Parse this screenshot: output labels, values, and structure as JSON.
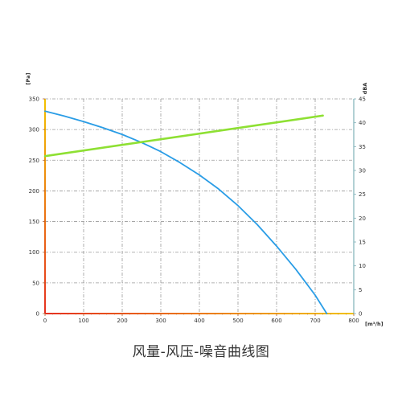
{
  "chart_data": {
    "type": "line",
    "caption": "风量-风压-噪音曲线图",
    "y_left_label": "[Pa]",
    "y_right_label": "dBA",
    "x_label": "[m³/h]",
    "xlim": [
      0,
      800
    ],
    "ylim_left": [
      0,
      350
    ],
    "ylim_right": [
      0,
      45
    ],
    "x_ticks": [
      "0",
      "100",
      "200",
      "300",
      "400",
      "500",
      "600",
      "700",
      "800"
    ],
    "y_left_ticks": [
      "0",
      "50",
      "100",
      "150",
      "200",
      "250",
      "300",
      "350"
    ],
    "y_right_ticks": [
      "0",
      "5",
      "10",
      "15",
      "20",
      "25",
      "30",
      "35",
      "40",
      "45"
    ],
    "grid": true,
    "series": [
      {
        "axis": "left",
        "color": "#2a9de6",
        "x": [
          0,
          50,
          100,
          150,
          200,
          250,
          300,
          350,
          400,
          450,
          500,
          550,
          600,
          650,
          700,
          730
        ],
        "y": [
          330,
          322,
          313,
          303,
          292,
          279,
          264,
          246,
          226,
          203,
          176,
          145,
          110,
          72,
          30,
          0
        ]
      },
      {
        "axis": "right",
        "color": "#8ee033",
        "x": [
          0,
          720
        ],
        "y": [
          33,
          41.5
        ]
      }
    ]
  }
}
